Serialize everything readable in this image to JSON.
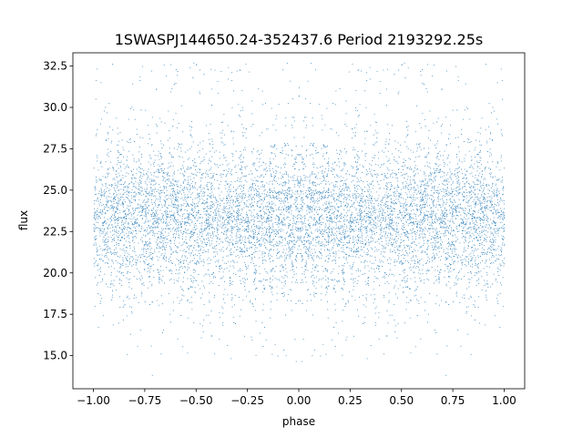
{
  "chart_data": {
    "type": "scatter",
    "title": "1SWASPJ144650.24-352437.6 Period 2193292.25s",
    "xlabel": "phase",
    "ylabel": "flux",
    "xlim": [
      -1.1,
      1.1
    ],
    "ylim": [
      13.0,
      33.3
    ],
    "xticks": [
      -1.0,
      -0.75,
      -0.5,
      -0.25,
      0.0,
      0.25,
      0.5,
      0.75,
      1.0
    ],
    "xtick_labels": [
      "−1.00",
      "−0.75",
      "−0.50",
      "−0.25",
      "0.00",
      "0.25",
      "0.50",
      "0.75",
      "1.00"
    ],
    "yticks": [
      15.0,
      17.5,
      20.0,
      22.5,
      25.0,
      27.5,
      30.0,
      32.5
    ],
    "ytick_labels": [
      "15.0",
      "17.5",
      "20.0",
      "22.5",
      "25.0",
      "27.5",
      "30.0",
      "32.5"
    ],
    "grid": false,
    "legend": "none",
    "marker_color": "#1f77b4",
    "phase_range": [
      -1.0,
      1.0
    ],
    "flux_core_range": [
      20.0,
      26.0
    ],
    "flux_median": 23.3,
    "flux_full_range": [
      13.8,
      32.7
    ],
    "symmetry": "phase-folded, mirrored about phase 0"
  }
}
